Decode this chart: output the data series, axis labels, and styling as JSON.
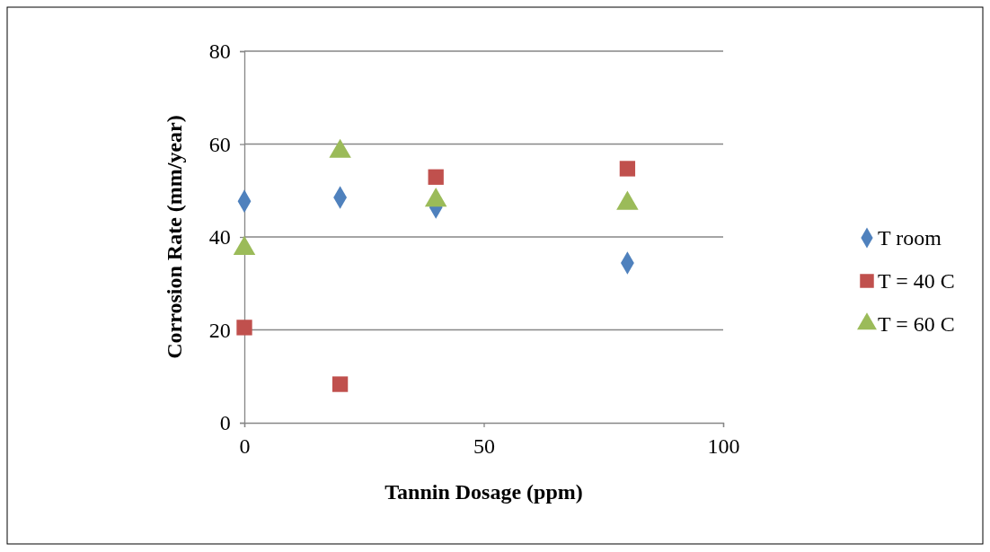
{
  "chart_data": {
    "type": "scatter",
    "xlabel": "Tannin Dosage (ppm)",
    "ylabel": "Corrosion Rate (mm/year)",
    "x": [
      0,
      20,
      40,
      80
    ],
    "series": [
      {
        "name": "T room",
        "color": "#4f81bd",
        "marker": "diamond",
        "values": [
          47.7,
          48.5,
          46.4,
          34.4
        ]
      },
      {
        "name": "T = 40 C",
        "color": "#c0504d",
        "marker": "square",
        "values": [
          20.5,
          8.3,
          52.9,
          54.7
        ]
      },
      {
        "name": "T = 60 C",
        "color": "#9bbb59",
        "marker": "triangle",
        "values": [
          37.5,
          58.4,
          47.9,
          47.2
        ]
      }
    ],
    "xlim": [
      0,
      100
    ],
    "xticks": [
      0,
      50,
      100
    ],
    "ylim": [
      0,
      80
    ],
    "yticks": [
      0,
      20,
      40,
      60,
      80
    ],
    "grid": "y",
    "legend": "right"
  }
}
